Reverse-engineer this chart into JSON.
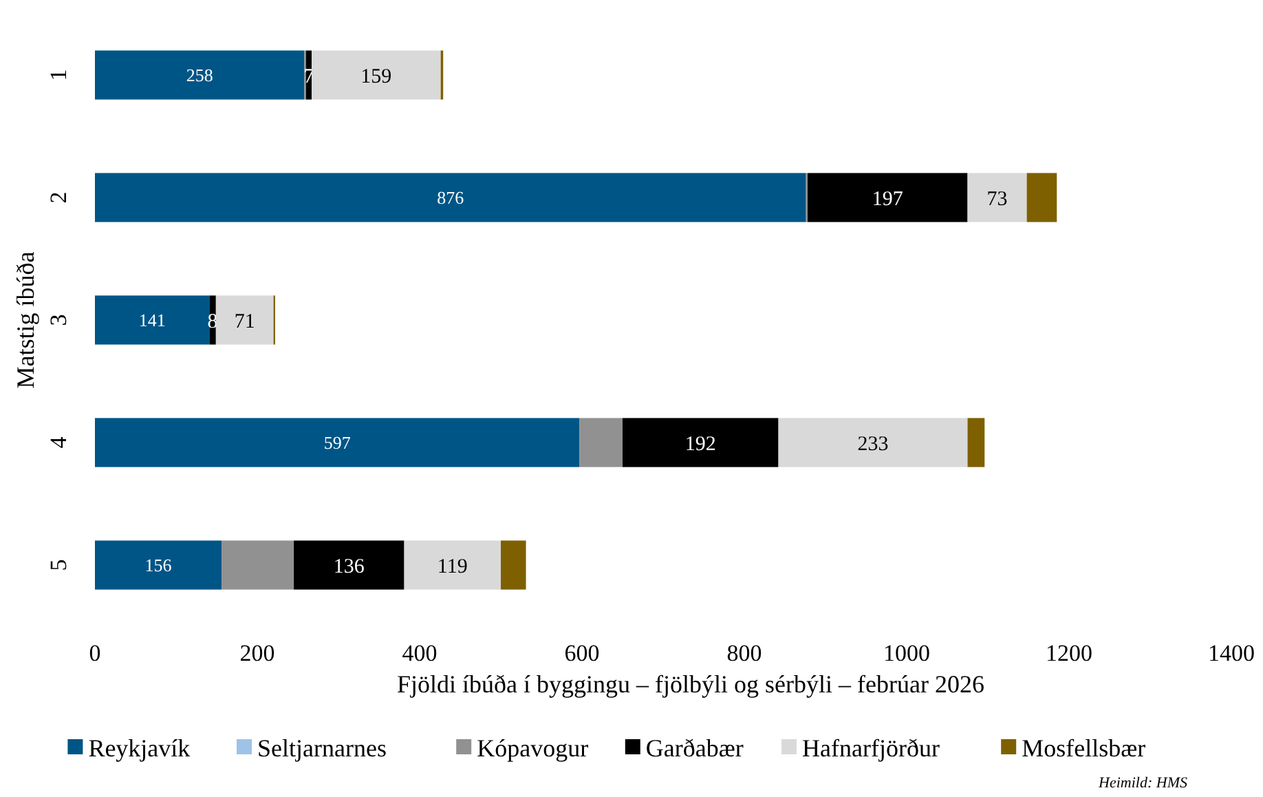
{
  "chart_data": {
    "type": "bar",
    "orientation": "horizontal",
    "stacked": true,
    "categories": [
      "1",
      "2",
      "3",
      "4",
      "5"
    ],
    "xlabel": "Fjöldi íbúða í byggingu – fjölbýli og sérbýli – febrúar 2026",
    "ylabel": "Matstig íbúða",
    "xlim": [
      0,
      1400
    ],
    "xticks": [
      0,
      200,
      400,
      600,
      800,
      1000,
      1200,
      1400
    ],
    "grid": false,
    "legend": "bottom",
    "annotations": [
      "Heimild: HMS"
    ],
    "series": [
      {
        "name": "Reykjavík",
        "color": "#005587",
        "values": [
          258,
          876,
          141,
          597,
          156
        ],
        "value_labels": [
          "258",
          "876",
          "141",
          "597",
          "156"
        ]
      },
      {
        "name": "Seltjarnarnes",
        "color": "#9dc3e6",
        "values": [
          0,
          0,
          0,
          0,
          0
        ]
      },
      {
        "name": "Kópavogur",
        "color": "#919191",
        "values": [
          2,
          2,
          0,
          53,
          89
        ]
      },
      {
        "name": "Garðabær",
        "color": "#000000",
        "values": [
          7,
          197,
          8,
          192,
          136
        ],
        "value_labels": [
          "7",
          "197",
          "8",
          "192",
          "136"
        ]
      },
      {
        "name": "Hafnarfjörður",
        "color": "#d9d9d9",
        "values": [
          159,
          73,
          71,
          233,
          119
        ],
        "value_labels": [
          "159",
          "73",
          "71",
          "233",
          "119"
        ]
      },
      {
        "name": "Mosfellsbær",
        "color": "#7f6000",
        "values": [
          3,
          37,
          2,
          21,
          31
        ]
      }
    ]
  }
}
